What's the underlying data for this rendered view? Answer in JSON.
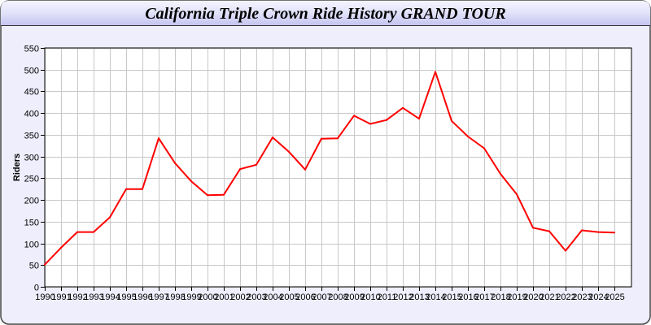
{
  "chart_data": {
    "type": "line",
    "title": "California Triple Crown Ride History GRAND TOUR",
    "xlabel": "",
    "ylabel": "Riders",
    "ylim": [
      0,
      550
    ],
    "yticks": [
      0,
      50,
      100,
      150,
      200,
      250,
      300,
      350,
      400,
      450,
      500,
      550
    ],
    "grid": true,
    "categories": [
      "1990",
      "1991",
      "1992",
      "1993",
      "1994",
      "1995",
      "1996",
      "1997",
      "1998",
      "1999",
      "2000",
      "2001",
      "2002",
      "2003",
      "2004",
      "2005",
      "2006",
      "2007",
      "2008",
      "2009",
      "2010",
      "2011",
      "2012",
      "2013",
      "2014",
      "2015",
      "2016",
      "2017",
      "2018",
      "2019",
      "2020",
      "2021",
      "2022",
      "2023",
      "2024",
      "2025"
    ],
    "series": [
      {
        "color": "#ff0000",
        "values": [
          51,
          90,
          126,
          126,
          160,
          225,
          225,
          342,
          285,
          243,
          211,
          212,
          271,
          281,
          344,
          311,
          270,
          341,
          342,
          394,
          375,
          384,
          412,
          387,
          495,
          382,
          346,
          319,
          260,
          213,
          136,
          128,
          83,
          130,
          126,
          125
        ]
      }
    ]
  },
  "colors": {
    "background": "#eeeefc",
    "line": "#ff0000",
    "grid": "#c8c8c8"
  }
}
